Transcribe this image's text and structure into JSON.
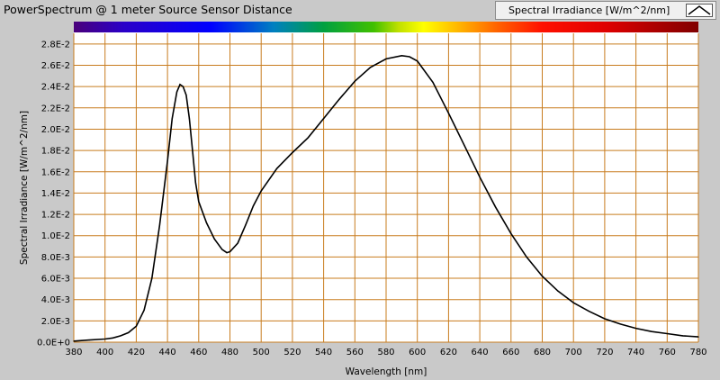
{
  "window": {
    "title": "PowerSpectrum @ 1 meter Source Sensor Distance"
  },
  "legend": {
    "label": "Spectral Irradiance [W/m^2/nm]",
    "swatch_icon": "line-swatch-icon"
  },
  "colors": {
    "panel": "#c9c9c9",
    "plot_background": "#ffffff",
    "grid": "#c87c1e",
    "curve": "#000000"
  },
  "chart_data": {
    "type": "line",
    "xlabel": "Wavelength [nm]",
    "ylabel": "Spectral Irradiance [W/m^2/nm]",
    "xlim": [
      380,
      780
    ],
    "ylim": [
      0,
      0.029
    ],
    "grid": true,
    "legend_position": "top-right",
    "color_band": "visible-spectrum",
    "x_ticks": [
      380,
      400,
      420,
      440,
      460,
      480,
      500,
      520,
      540,
      560,
      580,
      600,
      620,
      640,
      660,
      680,
      700,
      720,
      740,
      760,
      780
    ],
    "y_ticks": [
      0,
      0.002,
      0.004,
      0.006,
      0.008,
      0.01,
      0.012,
      0.014,
      0.016,
      0.018,
      0.02,
      0.022,
      0.024,
      0.026,
      0.028
    ],
    "y_tick_labels": [
      "0.0E+0",
      "2.0E-3",
      "4.0E-3",
      "6.0E-3",
      "8.0E-3",
      "1.0E-2",
      "1.2E-2",
      "1.4E-2",
      "1.6E-2",
      "1.8E-2",
      "2.0E-2",
      "2.2E-2",
      "2.4E-2",
      "2.6E-2",
      "2.8E-2"
    ],
    "series": [
      {
        "name": "Spectral Irradiance [W/m^2/nm]",
        "x": [
          380,
          390,
          400,
          405,
          410,
          415,
          420,
          425,
          430,
          435,
          440,
          443,
          446,
          448,
          450,
          452,
          454,
          456,
          458,
          460,
          465,
          470,
          475,
          478,
          480,
          485,
          490,
          495,
          500,
          510,
          520,
          530,
          540,
          550,
          560,
          570,
          580,
          590,
          595,
          600,
          610,
          620,
          630,
          640,
          650,
          660,
          670,
          680,
          690,
          700,
          710,
          720,
          730,
          740,
          750,
          760,
          770,
          780
        ],
        "y": [
          0.0001,
          0.0002,
          0.0003,
          0.0004,
          0.0006,
          0.0009,
          0.0015,
          0.003,
          0.006,
          0.011,
          0.017,
          0.021,
          0.0235,
          0.0242,
          0.024,
          0.0232,
          0.021,
          0.018,
          0.015,
          0.0132,
          0.0112,
          0.0097,
          0.0087,
          0.0084,
          0.0085,
          0.0093,
          0.011,
          0.0128,
          0.0142,
          0.0163,
          0.0178,
          0.0192,
          0.021,
          0.0228,
          0.0245,
          0.0258,
          0.0266,
          0.0269,
          0.0268,
          0.0264,
          0.0244,
          0.0215,
          0.0185,
          0.0155,
          0.0127,
          0.0102,
          0.008,
          0.0062,
          0.0048,
          0.0037,
          0.0029,
          0.0022,
          0.0017,
          0.0013,
          0.001,
          0.0008,
          0.0006,
          0.0005
        ]
      }
    ]
  }
}
